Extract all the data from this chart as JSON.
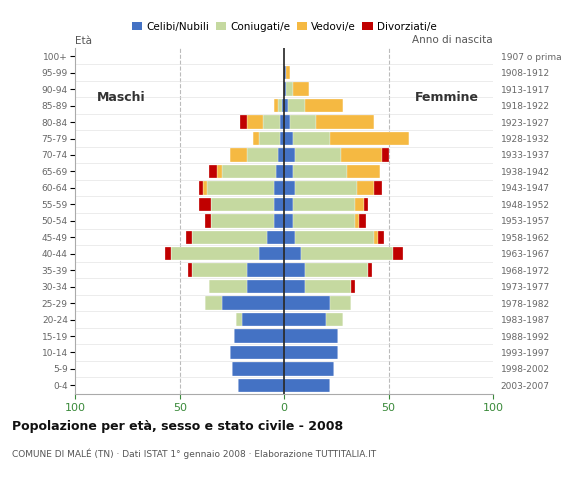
{
  "age_groups": [
    "0-4",
    "5-9",
    "10-14",
    "15-19",
    "20-24",
    "25-29",
    "30-34",
    "35-39",
    "40-44",
    "45-49",
    "50-54",
    "55-59",
    "60-64",
    "65-69",
    "70-74",
    "75-79",
    "80-84",
    "85-89",
    "90-94",
    "95-99",
    "100+"
  ],
  "birth_years": [
    "2003-2007",
    "1998-2002",
    "1993-1997",
    "1988-1992",
    "1983-1987",
    "1978-1982",
    "1973-1977",
    "1968-1972",
    "1963-1967",
    "1958-1962",
    "1953-1957",
    "1948-1952",
    "1943-1947",
    "1938-1942",
    "1933-1937",
    "1928-1932",
    "1923-1927",
    "1918-1922",
    "1913-1917",
    "1908-1912",
    "1907 o prima"
  ],
  "colors": {
    "single": "#4472c4",
    "married": "#c5d9a0",
    "widowed": "#f5b942",
    "divorced": "#c00000"
  },
  "males": {
    "single": [
      22,
      25,
      26,
      24,
      20,
      30,
      18,
      18,
      12,
      8,
      5,
      5,
      5,
      4,
      3,
      2,
      2,
      1,
      0,
      0,
      0
    ],
    "married": [
      0,
      0,
      0,
      0,
      3,
      8,
      18,
      26,
      42,
      36,
      30,
      30,
      32,
      26,
      15,
      10,
      8,
      2,
      0,
      0,
      0
    ],
    "widowed": [
      0,
      0,
      0,
      0,
      0,
      0,
      0,
      0,
      0,
      0,
      0,
      0,
      2,
      2,
      8,
      3,
      8,
      2,
      0,
      0,
      0
    ],
    "divorced": [
      0,
      0,
      0,
      0,
      0,
      0,
      0,
      2,
      3,
      3,
      3,
      6,
      2,
      4,
      0,
      0,
      3,
      0,
      0,
      0,
      0
    ]
  },
  "females": {
    "single": [
      22,
      24,
      26,
      26,
      20,
      22,
      10,
      10,
      8,
      5,
      4,
      4,
      5,
      4,
      5,
      4,
      3,
      2,
      1,
      1,
      0
    ],
    "married": [
      0,
      0,
      0,
      0,
      8,
      10,
      22,
      30,
      44,
      38,
      30,
      30,
      30,
      26,
      22,
      18,
      12,
      8,
      3,
      0,
      0
    ],
    "widowed": [
      0,
      0,
      0,
      0,
      0,
      0,
      0,
      0,
      0,
      2,
      2,
      4,
      8,
      16,
      20,
      38,
      28,
      18,
      8,
      2,
      0
    ],
    "divorced": [
      0,
      0,
      0,
      0,
      0,
      0,
      2,
      2,
      5,
      3,
      3,
      2,
      4,
      0,
      3,
      0,
      0,
      0,
      0,
      0,
      0
    ]
  },
  "title": "Popolazione per età, sesso e stato civile - 2008",
  "subtitle": "COMUNE DI MALÉ (TN) · Dati ISTAT 1° gennaio 2008 · Elaborazione TUTTITALIA.IT",
  "ylabel_left": "Età",
  "ylabel_right": "Anno di nascita",
  "legend_labels": [
    "Celibi/Nubili",
    "Coniugati/e",
    "Vedovi/e",
    "Divorziati/e"
  ],
  "xlim": 100,
  "male_label": "Maschi",
  "female_label": "Femmine",
  "bg_color": "#ffffff",
  "grid_color": "#cccccc"
}
